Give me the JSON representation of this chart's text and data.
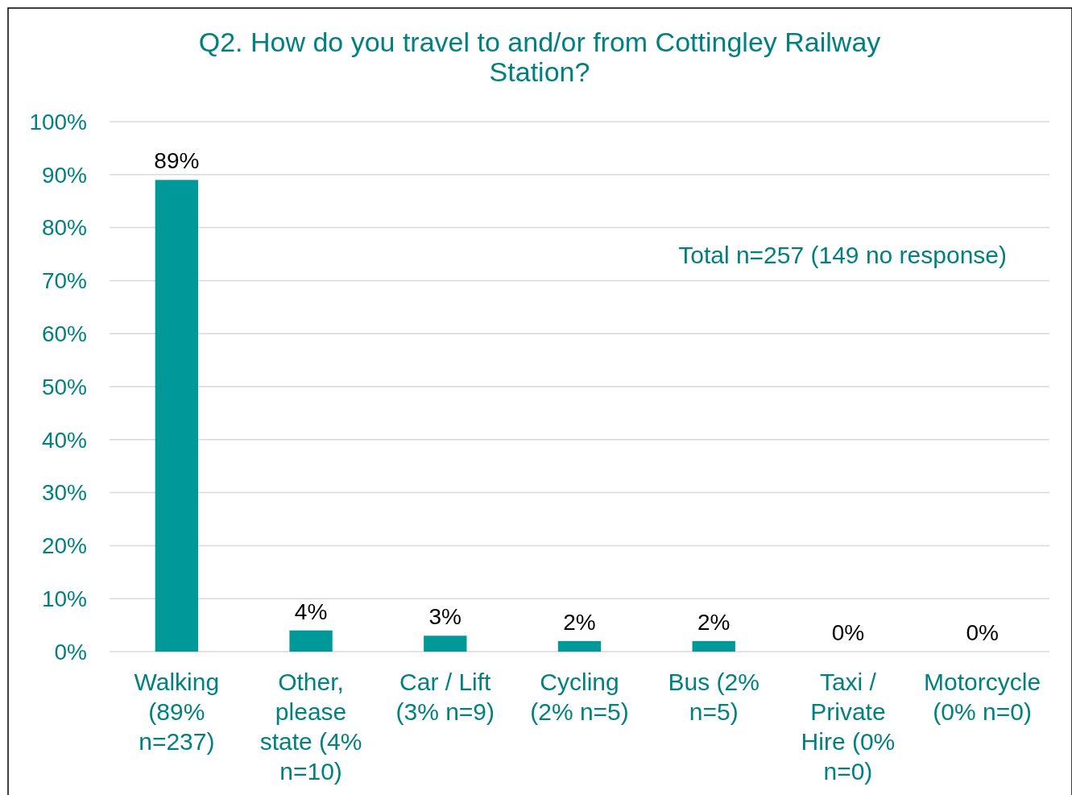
{
  "chart_data": {
    "type": "bar",
    "title": "Q2. How do you travel to and/or from Cottingley Railway Station?",
    "categories": [
      "Walking (89% n=237)",
      "Other, please state (4% n=10)",
      "Car / Lift (3% n=9)",
      "Cycling (2% n=5)",
      "Bus (2% n=5)",
      "Taxi / Private Hire (0% n=0)",
      "Motorcycle (0% n=0)"
    ],
    "values": [
      89,
      4,
      3,
      2,
      2,
      0,
      0
    ],
    "value_labels": [
      "89%",
      "4%",
      "3%",
      "2%",
      "2%",
      "0%",
      "0%"
    ],
    "color": "#009999",
    "ylim": [
      0,
      100
    ],
    "yticks": [
      {
        "value": 0,
        "label": "0%"
      },
      {
        "value": 10,
        "label": "10%"
      },
      {
        "value": 20,
        "label": "20%"
      },
      {
        "value": 30,
        "label": "30%"
      },
      {
        "value": 40,
        "label": "40%"
      },
      {
        "value": 50,
        "label": "50%"
      },
      {
        "value": 60,
        "label": "60%"
      },
      {
        "value": 70,
        "label": "70%"
      },
      {
        "value": 80,
        "label": "80%"
      },
      {
        "value": 90,
        "label": "90%"
      },
      {
        "value": 100,
        "label": "100%"
      }
    ],
    "grid": "y",
    "annotations": [
      "Total n=257 (149 no response)"
    ]
  }
}
